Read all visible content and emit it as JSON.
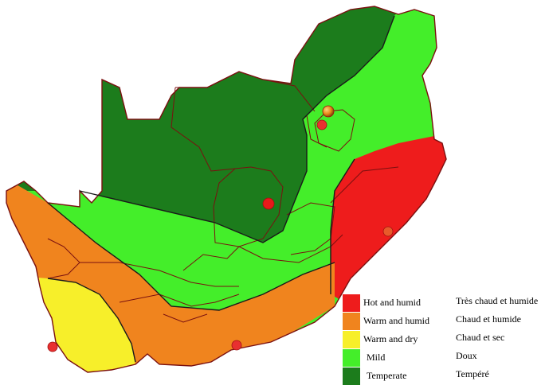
{
  "map": {
    "colors": {
      "hot_humid": "#ee1c1c",
      "warm_humid": "#f0841e",
      "warm_dry": "#f7ef2a",
      "mild": "#44ee2a",
      "temperate": "#1c7c1c",
      "border": "#7a1010",
      "zone_line": "#1a1a1a"
    },
    "markers": [
      {
        "name": "marker-west-coast",
        "color": "#e83030"
      },
      {
        "name": "marker-south-coast",
        "color": "#e83030"
      },
      {
        "name": "marker-central",
        "color": "#e81a1a"
      },
      {
        "name": "marker-east-coast",
        "color": "#e85a2a"
      },
      {
        "name": "marker-highveld",
        "color": "#e83030"
      },
      {
        "name": "marker-capital",
        "color": "#e88a1a"
      }
    ]
  },
  "legend": {
    "items": [
      {
        "en": "Hot and humid",
        "fr": "Très chaud et humide",
        "color": "#ee1c1c"
      },
      {
        "en": "Warm and humid",
        "fr": "Chaud et humide",
        "color": "#f0841e"
      },
      {
        "en": "Warm and dry",
        "fr": "Chaud et sec",
        "color": "#f7ef2a"
      },
      {
        "en": "Mild",
        "fr": "Doux",
        "color": "#44ee2a"
      },
      {
        "en": "Temperate",
        "fr": "Tempéré",
        "color": "#1c7c1c"
      }
    ]
  }
}
